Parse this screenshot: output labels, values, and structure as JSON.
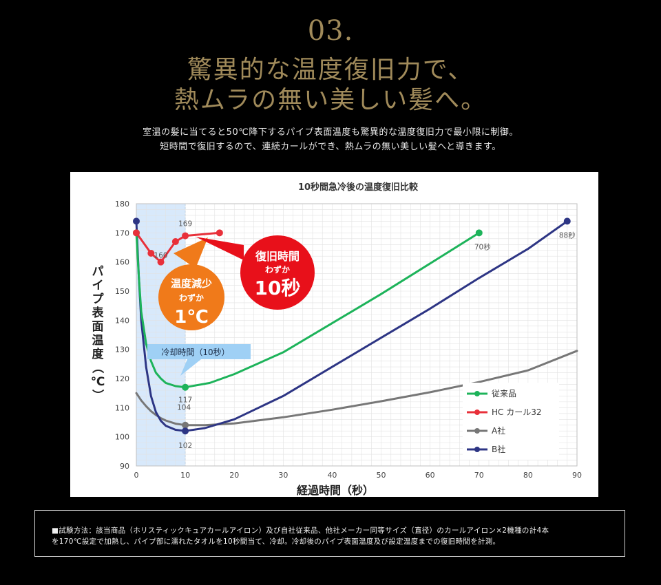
{
  "section_number": "03.",
  "headline": {
    "line1": "驚異的な温度復旧力で、",
    "line2": "熱ムラの無い美しい髪へ。"
  },
  "lead": {
    "line1": "室温の髪に当てると50℃降下するパイプ表面温度も驚異的な温度復旧力で最小限に制御。",
    "line2": "短時間で復旧するので、連続カールができ、熱ムラの無い美しい髪へと導きます。"
  },
  "chart_data": {
    "type": "line",
    "title": "10秒間急冷後の温度復旧比較",
    "xlabel": "経過時間（秒）",
    "ylabel": "パイプ表面温度（℃）",
    "xlim": [
      0,
      90
    ],
    "ylim": [
      90,
      180
    ],
    "x_ticks": [
      0,
      10,
      20,
      30,
      40,
      50,
      60,
      70,
      80,
      90
    ],
    "y_ticks": [
      90,
      100,
      110,
      120,
      130,
      140,
      150,
      160,
      170,
      180
    ],
    "grid": true,
    "legend_position": "bottom-right",
    "highlight_band": [
      0,
      10
    ],
    "series": [
      {
        "name": "従来品",
        "color": "#1db35a",
        "points": [
          [
            0,
            170
          ],
          [
            0.5,
            155
          ],
          [
            1,
            143
          ],
          [
            2,
            132
          ],
          [
            3,
            126
          ],
          [
            4,
            122
          ],
          [
            5,
            120
          ],
          [
            6,
            118.5
          ],
          [
            8,
            117.4
          ],
          [
            10,
            117
          ],
          [
            15,
            118.5
          ],
          [
            20,
            121.5
          ],
          [
            30,
            129
          ],
          [
            40,
            139
          ],
          [
            50,
            149
          ],
          [
            60,
            159.5
          ],
          [
            70,
            170
          ]
        ],
        "markers": [
          [
            0,
            170
          ],
          [
            10,
            117
          ],
          [
            70,
            170
          ]
        ]
      },
      {
        "name": "HC カール32",
        "color": "#e8303a",
        "points": [
          [
            0,
            170
          ],
          [
            3,
            163
          ],
          [
            5,
            160
          ],
          [
            8,
            167
          ],
          [
            10,
            169
          ],
          [
            17,
            170
          ]
        ],
        "markers": [
          [
            0,
            170
          ],
          [
            3,
            163
          ],
          [
            5,
            160
          ],
          [
            8,
            167
          ],
          [
            10,
            169
          ],
          [
            17,
            170
          ]
        ]
      },
      {
        "name": "A社",
        "color": "#777777",
        "points": [
          [
            0,
            115
          ],
          [
            1,
            112.5
          ],
          [
            2,
            110.5
          ],
          [
            3,
            108.8
          ],
          [
            4,
            107.5
          ],
          [
            5,
            106.4
          ],
          [
            6,
            105.6
          ],
          [
            8,
            104.5
          ],
          [
            10,
            104
          ],
          [
            14,
            104
          ],
          [
            20,
            104.6
          ],
          [
            30,
            106.7
          ],
          [
            40,
            109.3
          ],
          [
            50,
            112.2
          ],
          [
            60,
            115.3
          ],
          [
            70,
            118.8
          ],
          [
            80,
            122.8
          ],
          [
            90,
            129.5
          ]
        ],
        "markers": [
          [
            10,
            104
          ]
        ]
      },
      {
        "name": "B社",
        "color": "#2d3584",
        "points": [
          [
            0,
            174
          ],
          [
            0.5,
            155
          ],
          [
            1,
            140
          ],
          [
            2,
            124
          ],
          [
            3,
            114
          ],
          [
            4,
            108.5
          ],
          [
            5,
            105.5
          ],
          [
            6,
            103.8
          ],
          [
            8,
            102.4
          ],
          [
            10,
            102
          ],
          [
            14,
            103
          ],
          [
            20,
            106
          ],
          [
            30,
            114
          ],
          [
            40,
            124
          ],
          [
            50,
            134
          ],
          [
            60,
            144
          ],
          [
            70,
            154.5
          ],
          [
            80,
            164.5
          ],
          [
            88,
            174
          ]
        ],
        "markers": [
          [
            0,
            174
          ],
          [
            10,
            102
          ],
          [
            88,
            174
          ]
        ]
      }
    ],
    "data_labels": [
      {
        "text": "169",
        "x": 10,
        "y": 169
      },
      {
        "text": "160",
        "x": 5,
        "y": 160
      },
      {
        "text": "117",
        "x": 10,
        "y": 117
      },
      {
        "text": "104",
        "x": 10,
        "y": 104
      },
      {
        "text": "102",
        "x": 10,
        "y": 102
      },
      {
        "text": "70秒",
        "x": 70,
        "y": 170
      },
      {
        "text": "88秒",
        "x": 88,
        "y": 174
      }
    ],
    "callouts": {
      "cooling": "冷却時間（10秒）",
      "orange": {
        "line1": "温度減少",
        "line2": "わずか",
        "line3": "1℃",
        "color": "#f07a1a"
      },
      "red": {
        "line1": "復旧時間",
        "line2": "わずか",
        "line3": "10秒",
        "color": "#e8101a"
      }
    }
  },
  "footnote": {
    "line1": "■試験方法：該当商品（ホリスティックキュアカールアイロン）及び自社従来品、他社メーカー同等サイズ（直径）のカールアイロン×2機種の計4本",
    "line2": "を170℃設定で加熱し、パイプ部に濡れたタオルを10秒間当て、冷却。冷却後のパイプ表面温度及び設定温度までの復旧時間を計測。"
  }
}
